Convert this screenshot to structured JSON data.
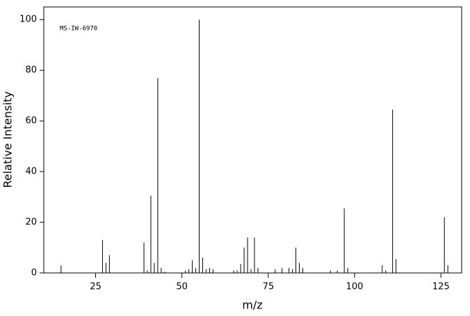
{
  "chart_data": {
    "type": "stem",
    "annotation": "MS-IW-6970",
    "x_label": "m/z",
    "y_label": "Relative Intensity",
    "x": [
      15,
      27,
      28,
      29,
      39,
      40,
      41,
      42,
      43,
      44,
      45,
      51,
      52,
      53,
      54,
      55,
      56,
      57,
      58,
      59,
      65,
      66,
      67,
      68,
      69,
      70,
      71,
      72,
      77,
      79,
      81,
      82,
      83,
      84,
      85,
      93,
      95,
      97,
      98,
      108,
      109,
      111,
      112,
      126,
      127
    ],
    "values": [
      3,
      13,
      4,
      7,
      12,
      1,
      30.5,
      4,
      77,
      2,
      0.5,
      1,
      1.5,
      5,
      2,
      100,
      6,
      1.5,
      2,
      1.5,
      1,
      1,
      3.5,
      10,
      14,
      1.5,
      14,
      2,
      1.5,
      2,
      2,
      1.5,
      10,
      4,
      2,
      1,
      1,
      25.5,
      2,
      3,
      1,
      64.5,
      5.5,
      22,
      3
    ],
    "color": "#000000",
    "xlim": [
      10,
      131
    ],
    "xticks": [
      25,
      50,
      75,
      100,
      125
    ],
    "ylim": [
      0,
      105
    ],
    "yticks": [
      0,
      20,
      40,
      60,
      80,
      100
    ],
    "grid": false
  }
}
